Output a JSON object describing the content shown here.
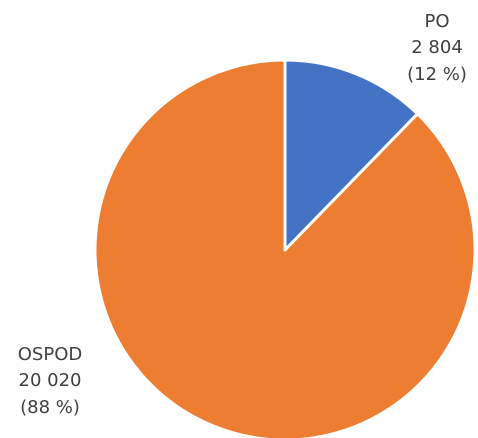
{
  "chart_data": {
    "type": "pie",
    "categories": [
      "PO",
      "OSPOD"
    ],
    "values": [
      2804,
      20020
    ],
    "value_labels": [
      "2 804",
      "20 020"
    ],
    "percents": [
      12,
      88
    ],
    "percent_labels": [
      "(12 %)",
      "(88 %)"
    ],
    "colors": [
      "#4472c4",
      "#ed7d31"
    ]
  }
}
